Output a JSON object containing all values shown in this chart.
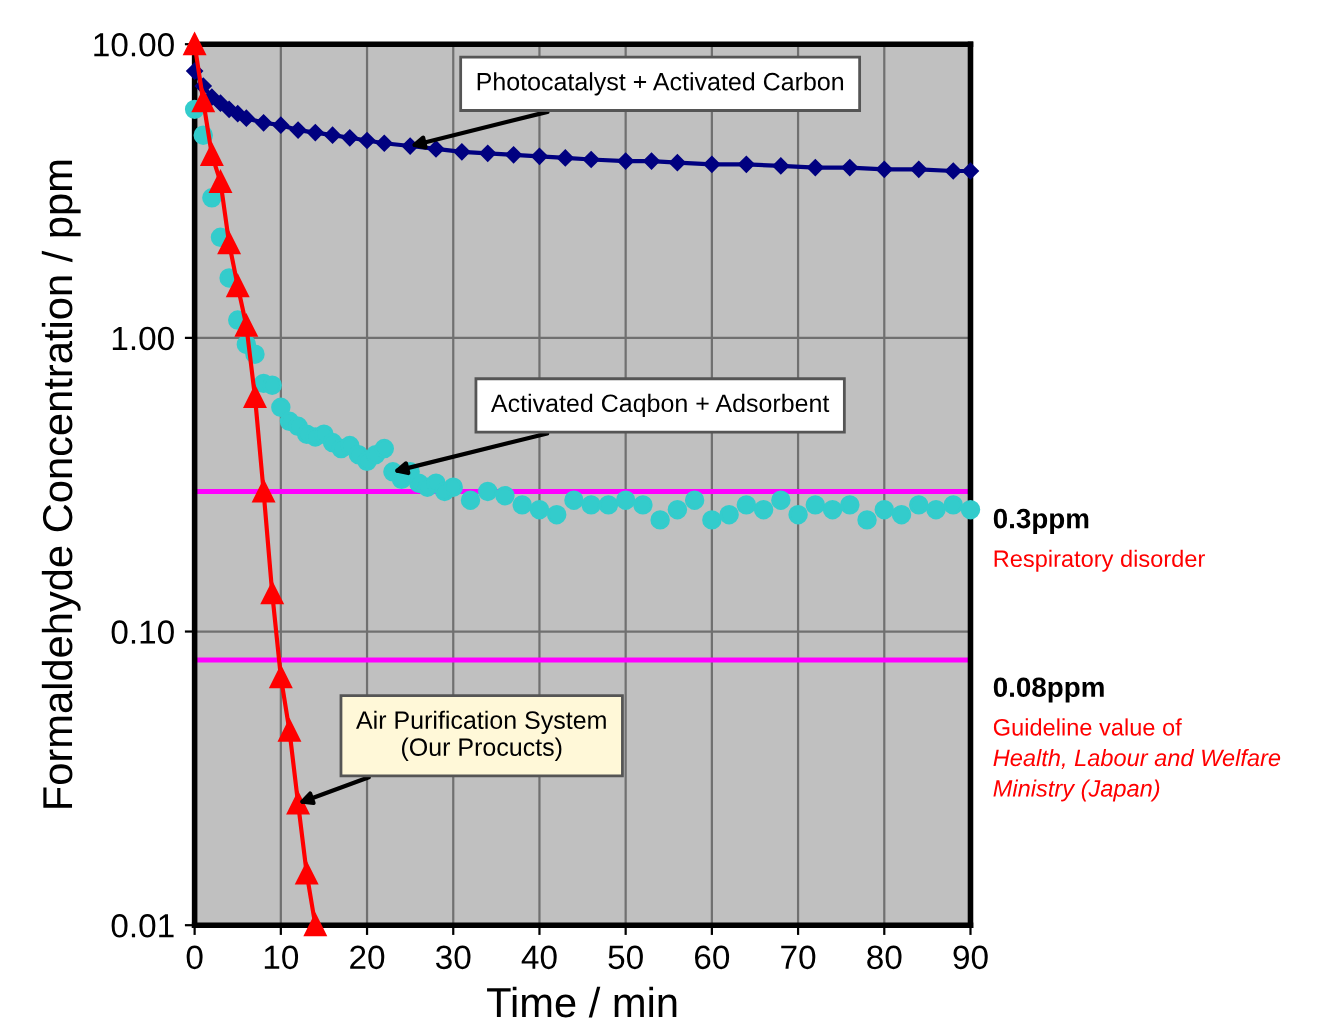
{
  "chart_data": {
    "type": "line",
    "xlabel": "Time / min",
    "ylabel": "Formaldehyde Concentration / ppm",
    "log": "y",
    "grid": true,
    "xlim": [
      0,
      90
    ],
    "xticks": [
      0,
      10,
      20,
      30,
      40,
      50,
      60,
      70,
      80,
      90
    ],
    "ylim": [
      0.01,
      10
    ],
    "yticks": [
      {
        "value": 10,
        "label": "10.00"
      },
      {
        "value": 1,
        "label": "1.00"
      },
      {
        "value": 0.1,
        "label": "0.10"
      },
      {
        "value": 0.01,
        "label": "0.01"
      }
    ],
    "series": [
      {
        "name": "Photocatalyst + Activated Carbon",
        "color": "#000080",
        "marker": "diamond",
        "x": [
          0,
          1,
          2,
          3,
          4,
          5,
          6,
          8,
          10,
          12,
          14,
          16,
          18,
          20,
          22,
          25,
          28,
          31,
          34,
          37,
          40,
          43,
          46,
          50,
          53,
          56,
          60,
          64,
          68,
          72,
          76,
          80,
          84,
          88,
          90
        ],
        "values": [
          8.1,
          7.2,
          6.6,
          6.3,
          6.0,
          5.8,
          5.6,
          5.4,
          5.3,
          5.1,
          5.0,
          4.9,
          4.8,
          4.7,
          4.6,
          4.5,
          4.4,
          4.3,
          4.25,
          4.2,
          4.15,
          4.1,
          4.05,
          4.0,
          4.0,
          3.95,
          3.9,
          3.9,
          3.85,
          3.8,
          3.8,
          3.75,
          3.75,
          3.7,
          3.7
        ]
      },
      {
        "name": "Activated Caqbon + Adsorbent",
        "type": "scatter",
        "color": "#33cccc",
        "marker": "circle",
        "x": [
          0,
          1,
          2,
          3,
          4,
          5,
          6,
          7,
          8,
          9,
          10,
          11,
          12,
          13,
          14,
          15,
          16,
          17,
          18,
          19,
          20,
          21,
          22,
          23,
          24,
          25,
          26,
          27,
          28,
          29,
          30,
          32,
          34,
          36,
          38,
          40,
          42,
          44,
          46,
          48,
          50,
          52,
          54,
          56,
          58,
          60,
          62,
          64,
          66,
          68,
          70,
          72,
          74,
          76,
          78,
          80,
          82,
          84,
          86,
          88,
          90
        ],
        "values": [
          6.0,
          4.9,
          3.0,
          2.2,
          1.6,
          1.15,
          0.95,
          0.88,
          0.7,
          0.69,
          0.58,
          0.52,
          0.5,
          0.47,
          0.46,
          0.47,
          0.44,
          0.42,
          0.43,
          0.4,
          0.38,
          0.4,
          0.42,
          0.35,
          0.33,
          0.35,
          0.32,
          0.31,
          0.32,
          0.3,
          0.31,
          0.28,
          0.3,
          0.29,
          0.27,
          0.26,
          0.25,
          0.28,
          0.27,
          0.27,
          0.28,
          0.27,
          0.24,
          0.26,
          0.28,
          0.24,
          0.25,
          0.27,
          0.26,
          0.28,
          0.25,
          0.27,
          0.26,
          0.27,
          0.24,
          0.26,
          0.25,
          0.27,
          0.26,
          0.27,
          0.26
        ]
      },
      {
        "name": "Air Purification System\n(Our Procucts)",
        "color": "#ff0000",
        "marker": "triangle",
        "x": [
          0,
          1,
          2,
          3,
          4,
          5,
          6,
          7,
          8,
          9,
          10,
          11,
          12,
          13,
          14
        ],
        "values": [
          10,
          6.4,
          4.2,
          3.4,
          2.1,
          1.5,
          1.1,
          0.63,
          0.3,
          0.135,
          0.07,
          0.046,
          0.026,
          0.015,
          0.01
        ]
      }
    ],
    "ref_lines": [
      {
        "axis": "y",
        "value": 0.3,
        "label": "0.3ppm",
        "color": "#ff00ff"
      },
      {
        "axis": "y",
        "value": 0.08,
        "label": "0.08ppm",
        "color": "#ff00ff"
      }
    ],
    "annotations": [
      {
        "text": "Respiratory disorder",
        "x": 90,
        "y": 0.3
      },
      {
        "text": "Guideline value of\nHealth, Labour and Welfare\nMinistry (Japan)",
        "x": 90,
        "y": 0.08
      }
    ]
  }
}
